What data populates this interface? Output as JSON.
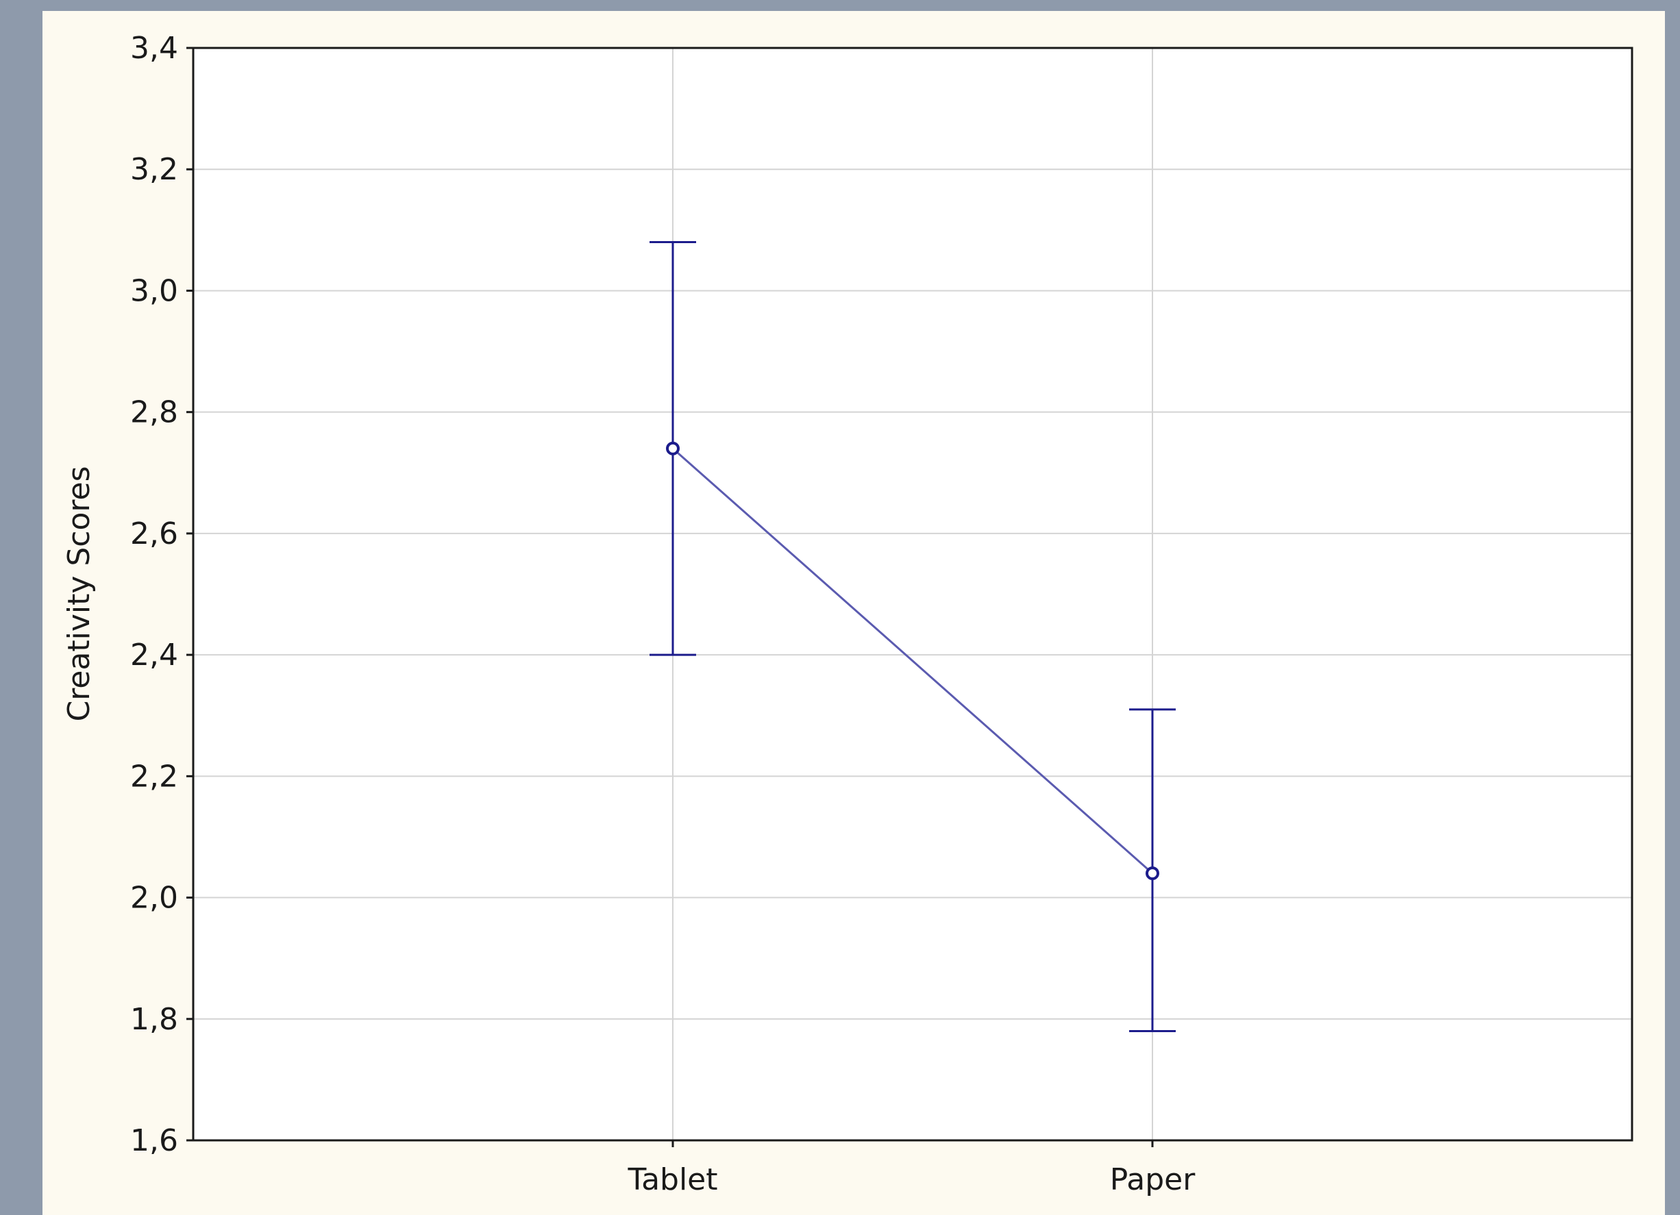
{
  "colors": {
    "page_background": "#8e9aab",
    "panel_background": "#fdfaf0",
    "plot_background": "#ffffff",
    "grid": "#d4d4d4",
    "axis": "#1a1a1a",
    "series": "#1c1c8c",
    "series_line": "#5b5bb0"
  },
  "chart_data": {
    "type": "line",
    "title": "",
    "xlabel": "",
    "ylabel": "Creativity Scores",
    "categories": [
      "Tablet",
      "Paper"
    ],
    "ylim": [
      1.6,
      3.4
    ],
    "yticks": [
      1.6,
      1.8,
      2.0,
      2.2,
      2.4,
      2.6,
      2.8,
      3.0,
      3.2,
      3.4
    ],
    "ytick_labels": [
      "1,6",
      "1,8",
      "2,0",
      "2,2",
      "2,4",
      "2,6",
      "2,8",
      "3,0",
      "3,2",
      "3,4"
    ],
    "grid": true,
    "legend": "none",
    "series": [
      {
        "values": [
          2.74,
          2.04
        ],
        "error_lower": [
          2.4,
          1.78
        ],
        "error_upper": [
          3.08,
          2.31
        ]
      }
    ]
  }
}
